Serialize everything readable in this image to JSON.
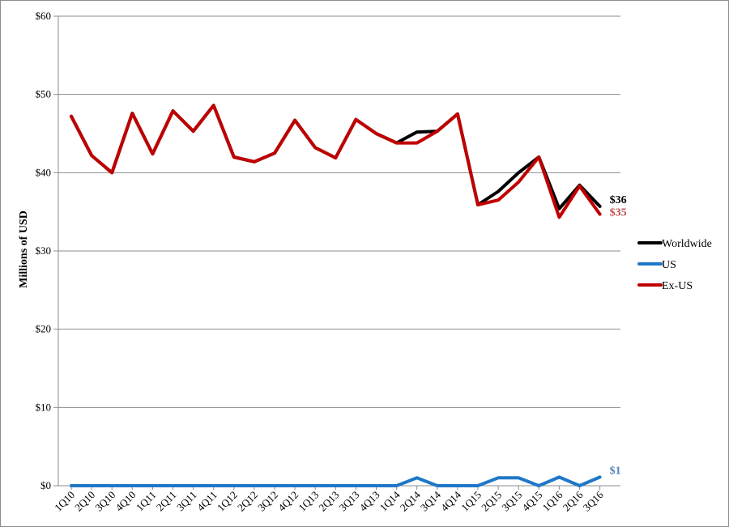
{
  "chart_data": {
    "type": "line",
    "title": "",
    "xlabel": "",
    "ylabel": "Millions of USD",
    "ylim": [
      0,
      60
    ],
    "yticks": [
      0,
      10,
      20,
      30,
      40,
      50,
      60
    ],
    "ytick_labels": [
      "$0",
      "$10",
      "$20",
      "$30",
      "$40",
      "$50",
      "$60"
    ],
    "grid": true,
    "legend_position": "right",
    "categories": [
      "1Q10",
      "2Q10",
      "3Q10",
      "4Q10",
      "1Q11",
      "2Q11",
      "3Q11",
      "4Q11",
      "1Q12",
      "2Q12",
      "3Q12",
      "4Q12",
      "1Q13",
      "2Q13",
      "3Q13",
      "4Q13",
      "1Q14",
      "2Q14",
      "3Q14",
      "4Q14",
      "1Q15",
      "2Q15",
      "3Q15",
      "4Q15",
      "1Q16",
      "2Q16",
      "3Q16"
    ],
    "series": [
      {
        "name": "Worldwide",
        "color": "#000000",
        "values": [
          47.2,
          42.2,
          40.0,
          47.6,
          42.4,
          47.9,
          45.3,
          48.6,
          42.0,
          41.4,
          42.5,
          46.7,
          43.2,
          41.9,
          46.8,
          45.0,
          43.8,
          45.2,
          45.3,
          47.5,
          35.9,
          37.6,
          40.0,
          42.0,
          35.4,
          38.4,
          35.7
        ],
        "end_label": "$36"
      },
      {
        "name": "US",
        "color": "#1f77c8",
        "values": [
          0,
          0,
          0,
          0,
          0,
          0,
          0,
          0,
          0,
          0,
          0,
          0,
          0,
          0,
          0,
          0,
          0,
          1.0,
          0,
          0,
          0,
          1.0,
          1.0,
          0,
          1.1,
          0,
          1.1
        ],
        "end_label": "$1"
      },
      {
        "name": "Ex-US",
        "color": "#c00000",
        "values": [
          47.2,
          42.2,
          40.0,
          47.6,
          42.4,
          47.9,
          45.3,
          48.6,
          42.0,
          41.4,
          42.5,
          46.7,
          43.2,
          41.9,
          46.8,
          45.0,
          43.8,
          43.8,
          45.3,
          47.5,
          35.9,
          36.5,
          38.8,
          42.0,
          34.3,
          38.3,
          34.7
        ],
        "end_label": "$35"
      }
    ]
  },
  "colors": {
    "worldwide": "#000000",
    "us": "#1f77c8",
    "ex_us": "#c00000",
    "ex_us_label": "#c0504d",
    "us_label": "#4f81bd",
    "grid": "#8c8c8c"
  }
}
